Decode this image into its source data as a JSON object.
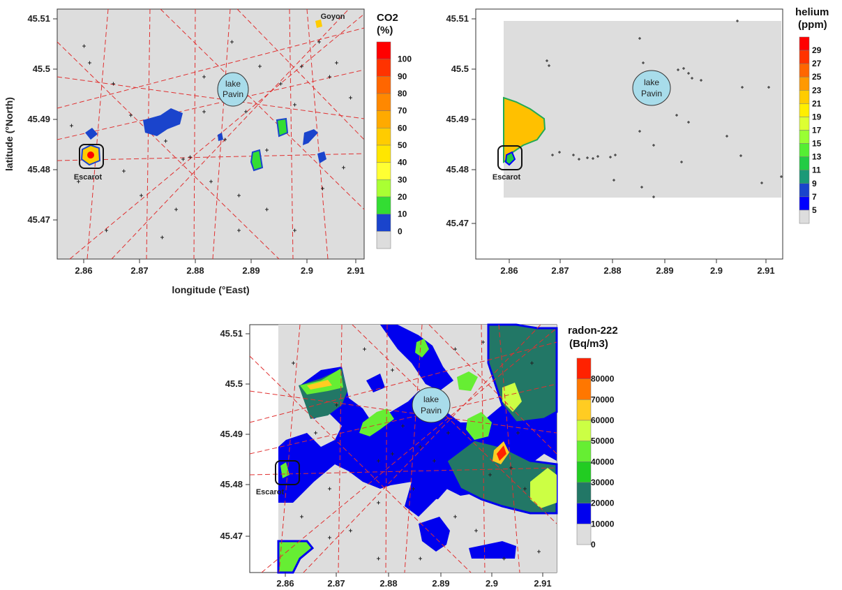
{
  "panels": [
    {
      "id": "co2",
      "legend_title": [
        "CO2",
        "(%)"
      ],
      "legend_labels": [
        "100",
        "90",
        "80",
        "70",
        "60",
        "50",
        "40",
        "30",
        "20",
        "10",
        "0"
      ],
      "legend_colors": [
        "#ff0000",
        "#ff3300",
        "#ff6600",
        "#ff8800",
        "#ffaa00",
        "#ffcc00",
        "#ffe600",
        "#ffff33",
        "#aaff33",
        "#33dd33",
        "#1a44cc",
        "#dddddd"
      ],
      "x_ticks": [
        "2.86",
        "2.87",
        "2.88",
        "2.89",
        "2.9",
        "2.91"
      ],
      "y_ticks": [
        "45.51",
        "45.5",
        "45.49",
        "45.48",
        "45.47"
      ],
      "xlabel": "longitude (°East)",
      "ylabel": "latitude (°North)",
      "lake_label": [
        "lake",
        "Pavin"
      ],
      "places": [
        "Escarot",
        "Goyon"
      ]
    },
    {
      "id": "helium",
      "legend_title": [
        "helium",
        "(ppm)"
      ],
      "legend_labels": [
        "29",
        "27",
        "25",
        "23",
        "21",
        "19",
        "17",
        "15",
        "13",
        "11",
        "9",
        "7",
        "5"
      ],
      "legend_colors": [
        "#ff0000",
        "#ff3300",
        "#ff6600",
        "#ff9900",
        "#ffcc00",
        "#ffee00",
        "#ddff33",
        "#99ff33",
        "#55ee33",
        "#22cc44",
        "#1a9977",
        "#1a44cc",
        "#0000ff",
        "#dddddd"
      ],
      "x_ticks": [
        "2.86",
        "2.87",
        "2.88",
        "2.89",
        "2.9",
        "2.91"
      ],
      "y_ticks": [
        "45.51",
        "45.5",
        "45.49",
        "45.48",
        "45.47"
      ],
      "lake_label": [
        "lake",
        "Pavin"
      ],
      "places": [
        "Escarot"
      ]
    },
    {
      "id": "radon",
      "legend_title": [
        "radon-222",
        "(Bq/m3)"
      ],
      "legend_labels": [
        "80000",
        "70000",
        "60000",
        "50000",
        "40000",
        "30000",
        "20000",
        "10000",
        "0"
      ],
      "legend_colors": [
        "#ff2200",
        "#ff7700",
        "#ffcc22",
        "#ccff44",
        "#66ee33",
        "#22cc22",
        "#227766",
        "#0000ee",
        "#dddddd"
      ],
      "x_ticks": [
        "2.86",
        "2.87",
        "2.88",
        "2.89",
        "2.9",
        "2.91"
      ],
      "y_ticks": [
        "45.51",
        "45.5",
        "45.49",
        "45.48",
        "45.47"
      ],
      "lake_label": [
        "lake",
        "Pavin"
      ],
      "places": [
        "Escarot"
      ]
    }
  ],
  "colors": {
    "background_gray": "#dddddd",
    "fault_line": "#e03030",
    "lake_fill": "#a8dcea",
    "co2_blue": "#1a44cc",
    "radon_blue": "#0000ee",
    "radon_teal": "#227766",
    "radon_green": "#66ee33",
    "helium_orange": "#ffc000"
  }
}
